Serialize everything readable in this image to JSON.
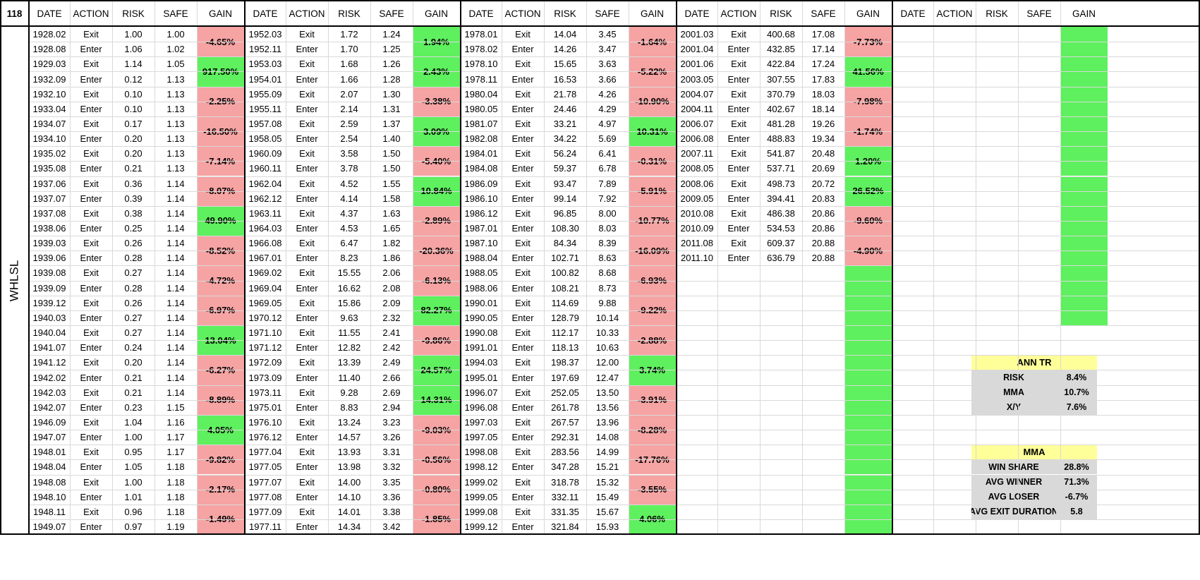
{
  "corner_label": "118",
  "side_label": "WHLSL",
  "headers": [
    "DATE",
    "ACTION",
    "RISK",
    "SAFE",
    "GAIN"
  ],
  "blocks": [
    {
      "rows": [
        [
          "1928.02",
          "Exit",
          "1.00",
          "1.00"
        ],
        [
          "1928.08",
          "Enter",
          "1.06",
          "1.02"
        ],
        [
          "1929.03",
          "Exit",
          "1.14",
          "1.05"
        ],
        [
          "1932.09",
          "Enter",
          "0.12",
          "1.13"
        ],
        [
          "1932.10",
          "Exit",
          "0.10",
          "1.13"
        ],
        [
          "1933.04",
          "Enter",
          "0.10",
          "1.13"
        ],
        [
          "1934.07",
          "Exit",
          "0.17",
          "1.13"
        ],
        [
          "1934.10",
          "Enter",
          "0.20",
          "1.13"
        ],
        [
          "1935.02",
          "Exit",
          "0.20",
          "1.13"
        ],
        [
          "1935.08",
          "Enter",
          "0.21",
          "1.13"
        ],
        [
          "1937.06",
          "Exit",
          "0.36",
          "1.14"
        ],
        [
          "1937.07",
          "Enter",
          "0.39",
          "1.14"
        ],
        [
          "1937.08",
          "Exit",
          "0.38",
          "1.14"
        ],
        [
          "1938.06",
          "Enter",
          "0.25",
          "1.14"
        ],
        [
          "1939.03",
          "Exit",
          "0.26",
          "1.14"
        ],
        [
          "1939.06",
          "Enter",
          "0.28",
          "1.14"
        ],
        [
          "1939.08",
          "Exit",
          "0.27",
          "1.14"
        ],
        [
          "1939.09",
          "Enter",
          "0.28",
          "1.14"
        ],
        [
          "1939.12",
          "Exit",
          "0.26",
          "1.14"
        ],
        [
          "1940.03",
          "Enter",
          "0.27",
          "1.14"
        ],
        [
          "1940.04",
          "Exit",
          "0.27",
          "1.14"
        ],
        [
          "1941.07",
          "Enter",
          "0.24",
          "1.14"
        ],
        [
          "1941.12",
          "Exit",
          "0.20",
          "1.14"
        ],
        [
          "1942.02",
          "Enter",
          "0.21",
          "1.14"
        ],
        [
          "1942.03",
          "Exit",
          "0.21",
          "1.14"
        ],
        [
          "1942.07",
          "Enter",
          "0.23",
          "1.15"
        ],
        [
          "1946.09",
          "Exit",
          "1.04",
          "1.16"
        ],
        [
          "1947.07",
          "Enter",
          "1.00",
          "1.17"
        ],
        [
          "1948.01",
          "Exit",
          "0.95",
          "1.17"
        ],
        [
          "1948.04",
          "Enter",
          "1.05",
          "1.18"
        ],
        [
          "1948.08",
          "Exit",
          "1.00",
          "1.18"
        ],
        [
          "1948.10",
          "Enter",
          "1.01",
          "1.18"
        ],
        [
          "1948.11",
          "Exit",
          "0.96",
          "1.18"
        ],
        [
          "1949.07",
          "Enter",
          "0.97",
          "1.19"
        ]
      ],
      "gains": [
        "-4.65%",
        "917.50%",
        "-2.25%",
        "-16.50%",
        "-7.14%",
        "-8.07%",
        "49.90%",
        "-8.52%",
        "-4.72%",
        "-6.97%",
        "13.04%",
        "-6.27%",
        "-8.89%",
        "4.05%",
        "-9.82%",
        "-2.17%",
        "-1.49%"
      ]
    },
    {
      "rows": [
        [
          "1952.03",
          "Exit",
          "1.72",
          "1.24"
        ],
        [
          "1952.11",
          "Enter",
          "1.70",
          "1.25"
        ],
        [
          "1953.03",
          "Exit",
          "1.68",
          "1.26"
        ],
        [
          "1954.01",
          "Enter",
          "1.66",
          "1.28"
        ],
        [
          "1955.09",
          "Exit",
          "2.07",
          "1.30"
        ],
        [
          "1955.11",
          "Enter",
          "2.14",
          "1.31"
        ],
        [
          "1957.08",
          "Exit",
          "2.59",
          "1.37"
        ],
        [
          "1958.05",
          "Enter",
          "2.54",
          "1.40"
        ],
        [
          "1960.09",
          "Exit",
          "3.58",
          "1.50"
        ],
        [
          "1960.11",
          "Enter",
          "3.78",
          "1.50"
        ],
        [
          "1962.04",
          "Exit",
          "4.52",
          "1.55"
        ],
        [
          "1962.12",
          "Enter",
          "4.14",
          "1.58"
        ],
        [
          "1963.11",
          "Exit",
          "4.37",
          "1.63"
        ],
        [
          "1964.03",
          "Enter",
          "4.53",
          "1.65"
        ],
        [
          "1966.08",
          "Exit",
          "6.47",
          "1.82"
        ],
        [
          "1967.01",
          "Enter",
          "8.23",
          "1.86"
        ],
        [
          "1969.02",
          "Exit",
          "15.55",
          "2.06"
        ],
        [
          "1969.04",
          "Enter",
          "16.62",
          "2.08"
        ],
        [
          "1969.05",
          "Exit",
          "15.86",
          "2.09"
        ],
        [
          "1970.12",
          "Enter",
          "9.63",
          "2.32"
        ],
        [
          "1971.10",
          "Exit",
          "11.55",
          "2.41"
        ],
        [
          "1971.12",
          "Enter",
          "12.82",
          "2.42"
        ],
        [
          "1972.09",
          "Exit",
          "13.39",
          "2.49"
        ],
        [
          "1973.09",
          "Enter",
          "11.40",
          "2.66"
        ],
        [
          "1973.11",
          "Exit",
          "9.28",
          "2.69"
        ],
        [
          "1975.01",
          "Enter",
          "8.83",
          "2.94"
        ],
        [
          "1976.10",
          "Exit",
          "13.24",
          "3.23"
        ],
        [
          "1976.12",
          "Enter",
          "14.57",
          "3.26"
        ],
        [
          "1977.04",
          "Exit",
          "13.93",
          "3.31"
        ],
        [
          "1977.05",
          "Enter",
          "13.98",
          "3.32"
        ],
        [
          "1977.07",
          "Exit",
          "14.00",
          "3.35"
        ],
        [
          "1977.08",
          "Enter",
          "14.10",
          "3.36"
        ],
        [
          "1977.09",
          "Exit",
          "14.01",
          "3.38"
        ],
        [
          "1977.11",
          "Enter",
          "14.34",
          "3.42"
        ]
      ],
      "gains": [
        "1.94%",
        "2.43%",
        "-3.38%",
        "3.09%",
        "-5.40%",
        "10.84%",
        "-2.89%",
        "-20.36%",
        "-6.13%",
        "82.27%",
        "-9.86%",
        "24.57%",
        "14.31%",
        "-9.03%",
        "-0.56%",
        "-0.80%",
        "-1.85%"
      ]
    },
    {
      "rows": [
        [
          "1978.01",
          "Exit",
          "14.04",
          "3.45"
        ],
        [
          "1978.02",
          "Enter",
          "14.26",
          "3.47"
        ],
        [
          "1978.10",
          "Exit",
          "15.65",
          "3.63"
        ],
        [
          "1978.11",
          "Enter",
          "16.53",
          "3.66"
        ],
        [
          "1980.04",
          "Exit",
          "21.78",
          "4.26"
        ],
        [
          "1980.05",
          "Enter",
          "24.46",
          "4.29"
        ],
        [
          "1981.07",
          "Exit",
          "33.21",
          "4.97"
        ],
        [
          "1982.08",
          "Enter",
          "34.22",
          "5.69"
        ],
        [
          "1984.01",
          "Exit",
          "56.24",
          "6.41"
        ],
        [
          "1984.08",
          "Enter",
          "59.37",
          "6.78"
        ],
        [
          "1986.09",
          "Exit",
          "93.47",
          "7.89"
        ],
        [
          "1986.10",
          "Enter",
          "99.14",
          "7.92"
        ],
        [
          "1986.12",
          "Exit",
          "96.85",
          "8.00"
        ],
        [
          "1987.01",
          "Enter",
          "108.30",
          "8.03"
        ],
        [
          "1987.10",
          "Exit",
          "84.34",
          "8.39"
        ],
        [
          "1988.04",
          "Enter",
          "102.71",
          "8.63"
        ],
        [
          "1988.05",
          "Exit",
          "100.82",
          "8.68"
        ],
        [
          "1988.06",
          "Enter",
          "108.21",
          "8.73"
        ],
        [
          "1990.01",
          "Exit",
          "114.69",
          "9.88"
        ],
        [
          "1990.05",
          "Enter",
          "128.79",
          "10.14"
        ],
        [
          "1990.08",
          "Exit",
          "112.17",
          "10.33"
        ],
        [
          "1991.01",
          "Enter",
          "118.13",
          "10.63"
        ],
        [
          "1994.03",
          "Exit",
          "198.37",
          "12.00"
        ],
        [
          "1995.01",
          "Enter",
          "197.69",
          "12.47"
        ],
        [
          "1996.07",
          "Exit",
          "252.05",
          "13.50"
        ],
        [
          "1996.08",
          "Enter",
          "261.78",
          "13.56"
        ],
        [
          "1997.03",
          "Exit",
          "267.57",
          "13.96"
        ],
        [
          "1997.05",
          "Enter",
          "292.31",
          "14.08"
        ],
        [
          "1998.08",
          "Exit",
          "283.56",
          "14.99"
        ],
        [
          "1998.12",
          "Enter",
          "347.28",
          "15.21"
        ],
        [
          "1999.02",
          "Exit",
          "318.78",
          "15.32"
        ],
        [
          "1999.05",
          "Enter",
          "332.11",
          "15.49"
        ],
        [
          "1999.08",
          "Exit",
          "331.35",
          "15.67"
        ],
        [
          "1999.12",
          "Enter",
          "321.84",
          "15.93"
        ]
      ],
      "gains": [
        "-1.64%",
        "-5.22%",
        "-10.90%",
        "10.31%",
        "-0.31%",
        "-5.91%",
        "-10.77%",
        "-16.09%",
        "-6.93%",
        "-9.22%",
        "-2.88%",
        "3.74%",
        "-3.91%",
        "-8.28%",
        "-17.76%",
        "-3.55%",
        "4.06%"
      ]
    },
    {
      "rows": [
        [
          "2001.03",
          "Exit",
          "400.68",
          "17.08"
        ],
        [
          "2001.04",
          "Enter",
          "432.85",
          "17.14"
        ],
        [
          "2001.06",
          "Exit",
          "422.84",
          "17.24"
        ],
        [
          "2003.05",
          "Enter",
          "307.55",
          "17.83"
        ],
        [
          "2004.07",
          "Exit",
          "370.79",
          "18.03"
        ],
        [
          "2004.11",
          "Enter",
          "402.67",
          "18.14"
        ],
        [
          "2006.07",
          "Exit",
          "481.28",
          "19.26"
        ],
        [
          "2006.08",
          "Enter",
          "488.83",
          "19.34"
        ],
        [
          "2007.11",
          "Exit",
          "541.87",
          "20.48"
        ],
        [
          "2008.05",
          "Enter",
          "537.71",
          "20.69"
        ],
        [
          "2008.06",
          "Exit",
          "498.73",
          "20.72"
        ],
        [
          "2009.05",
          "Enter",
          "394.41",
          "20.83"
        ],
        [
          "2010.08",
          "Exit",
          "486.38",
          "20.86"
        ],
        [
          "2010.09",
          "Enter",
          "534.53",
          "20.86"
        ],
        [
          "2011.08",
          "Exit",
          "609.37",
          "20.88"
        ],
        [
          "2011.10",
          "Enter",
          "636.79",
          "20.88"
        ]
      ],
      "gains": [
        "-7.73%",
        "41.56%",
        "-7.98%",
        "-1.74%",
        "1.20%",
        "26.52%",
        "-9.60%",
        "-4.90%"
      ],
      "empty_green_pairs": 9
    },
    {
      "rows": [],
      "gains": [],
      "empty_green_pairs": 10
    }
  ],
  "summary": [
    {
      "title": "ANN TR",
      "rows": [
        [
          "RISK",
          "8.4%"
        ],
        [
          "MMA",
          "10.7%"
        ],
        [
          "X/Y",
          "7.6%"
        ]
      ]
    },
    {
      "title": "MMA",
      "rows": [
        [
          "WIN SHARE",
          "28.8%"
        ],
        [
          "AVG WINNER",
          "71.3%"
        ],
        [
          "AVG LOSER",
          "-6.7%"
        ],
        [
          "AVG EXIT DURATION",
          "5.8"
        ]
      ]
    }
  ],
  "colors": {
    "negative": "#f6a3a3",
    "positive": "#5ef05e",
    "summary_title": "#ffff99",
    "summary_row": "#d9d9d9"
  }
}
